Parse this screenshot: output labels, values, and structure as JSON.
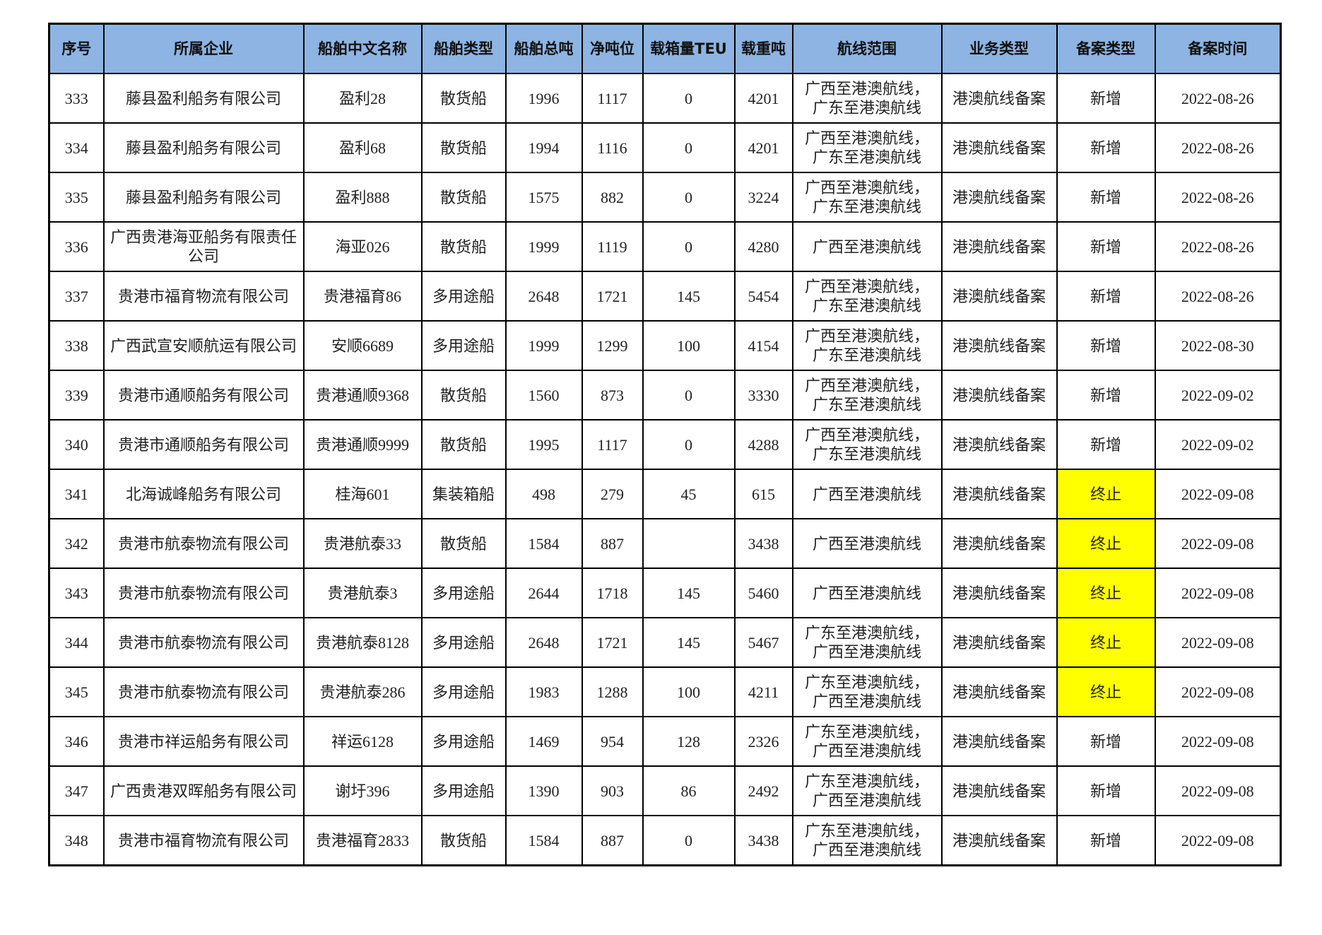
{
  "colors": {
    "header_bg": "#8DB4E2",
    "highlight": "#FFFF00"
  },
  "headers": [
    "序号",
    "所属企业",
    "船舶中文名称",
    "船舶类型",
    "船舶总吨",
    "净吨位",
    "载箱量TEU",
    "载重吨",
    "航线范围",
    "业务类型",
    "备案类型",
    "备案时间"
  ],
  "rows": [
    [
      "333",
      "藤县盈利船务有限公司",
      "盈利28",
      "散货船",
      "1996",
      "1117",
      "0",
      "4201",
      "广西至港澳航线，广东至港澳航线",
      "港澳航线备案",
      "新增",
      "2022-08-26"
    ],
    [
      "334",
      "藤县盈利船务有限公司",
      "盈利68",
      "散货船",
      "1994",
      "1116",
      "0",
      "4201",
      "广西至港澳航线，广东至港澳航线",
      "港澳航线备案",
      "新增",
      "2022-08-26"
    ],
    [
      "335",
      "藤县盈利船务有限公司",
      "盈利888",
      "散货船",
      "1575",
      "882",
      "0",
      "3224",
      "广西至港澳航线，广东至港澳航线",
      "港澳航线备案",
      "新增",
      "2022-08-26"
    ],
    [
      "336",
      "广西贵港海亚船务有限责任公司",
      "海亚026",
      "散货船",
      "1999",
      "1119",
      "0",
      "4280",
      "广西至港澳航线",
      "港澳航线备案",
      "新增",
      "2022-08-26"
    ],
    [
      "337",
      "贵港市福育物流有限公司",
      "贵港福育86",
      "多用途船",
      "2648",
      "1721",
      "145",
      "5454",
      "广西至港澳航线，广东至港澳航线",
      "港澳航线备案",
      "新增",
      "2022-08-26"
    ],
    [
      "338",
      "广西武宣安顺航运有限公司",
      "安顺6689",
      "多用途船",
      "1999",
      "1299",
      "100",
      "4154",
      "广西至港澳航线，广东至港澳航线",
      "港澳航线备案",
      "新增",
      "2022-08-30"
    ],
    [
      "339",
      "贵港市通顺船务有限公司",
      "贵港通顺9368",
      "散货船",
      "1560",
      "873",
      "0",
      "3330",
      "广西至港澳航线，广东至港澳航线",
      "港澳航线备案",
      "新增",
      "2022-09-02"
    ],
    [
      "340",
      "贵港市通顺船务有限公司",
      "贵港通顺9999",
      "散货船",
      "1995",
      "1117",
      "0",
      "4288",
      "广西至港澳航线，广东至港澳航线",
      "港澳航线备案",
      "新增",
      "2022-09-02"
    ],
    [
      "341",
      "北海诚峰船务有限公司",
      "桂海601",
      "集装箱船",
      "498",
      "279",
      "45",
      "615",
      "广西至港澳航线",
      "港澳航线备案",
      "终止",
      "2022-09-08"
    ],
    [
      "342",
      "贵港市航泰物流有限公司",
      "贵港航泰33",
      "散货船",
      "1584",
      "887",
      "",
      "3438",
      "广西至港澳航线",
      "港澳航线备案",
      "终止",
      "2022-09-08"
    ],
    [
      "343",
      "贵港市航泰物流有限公司",
      "贵港航泰3",
      "多用途船",
      "2644",
      "1718",
      "145",
      "5460",
      "广西至港澳航线",
      "港澳航线备案",
      "终止",
      "2022-09-08"
    ],
    [
      "344",
      "贵港市航泰物流有限公司",
      "贵港航泰8128",
      "多用途船",
      "2648",
      "1721",
      "145",
      "5467",
      "广东至港澳航线，广西至港澳航线",
      "港澳航线备案",
      "终止",
      "2022-09-08"
    ],
    [
      "345",
      "贵港市航泰物流有限公司",
      "贵港航泰286",
      "多用途船",
      "1983",
      "1288",
      "100",
      "4211",
      "广东至港澳航线，广西至港澳航线",
      "港澳航线备案",
      "终止",
      "2022-09-08"
    ],
    [
      "346",
      "贵港市祥运船务有限公司",
      "祥运6128",
      "多用途船",
      "1469",
      "954",
      "128",
      "2326",
      "广东至港澳航线，广西至港澳航线",
      "港澳航线备案",
      "新增",
      "2022-09-08"
    ],
    [
      "347",
      "广西贵港双晖船务有限公司",
      "谢圩396",
      "多用途船",
      "1390",
      "903",
      "86",
      "2492",
      "广东至港澳航线，广西至港澳航线",
      "港澳航线备案",
      "新增",
      "2022-09-08"
    ],
    [
      "348",
      "贵港市福育物流有限公司",
      "贵港福育2833",
      "散货船",
      "1584",
      "887",
      "0",
      "3438",
      "广东至港澳航线，广西至港澳航线",
      "港澳航线备案",
      "新增",
      "2022-09-08"
    ]
  ]
}
